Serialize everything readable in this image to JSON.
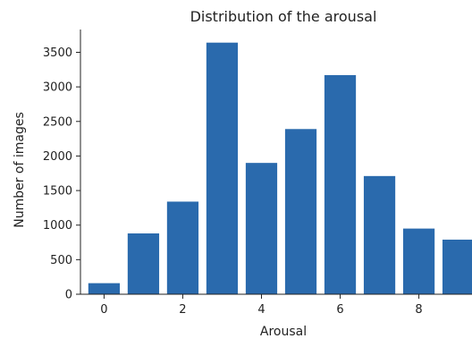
{
  "chart_data": {
    "type": "bar",
    "title": "Distribution of the arousal",
    "xlabel": "Arousal",
    "ylabel": "Number of images",
    "categories": [
      0,
      1,
      2,
      3,
      4,
      5,
      6,
      7,
      8,
      9
    ],
    "values": [
      160,
      880,
      1340,
      3640,
      1900,
      2390,
      3170,
      1710,
      950,
      790
    ],
    "xticks": [
      0,
      2,
      4,
      6,
      8
    ],
    "yticks": [
      0,
      500,
      1000,
      1500,
      2000,
      2500,
      3000,
      3500
    ],
    "xlim": [
      -0.6,
      9.35
    ],
    "ylim": [
      0,
      3830
    ],
    "grid": false,
    "bar_color": "#2a6aad",
    "axis_color": "#222222"
  }
}
